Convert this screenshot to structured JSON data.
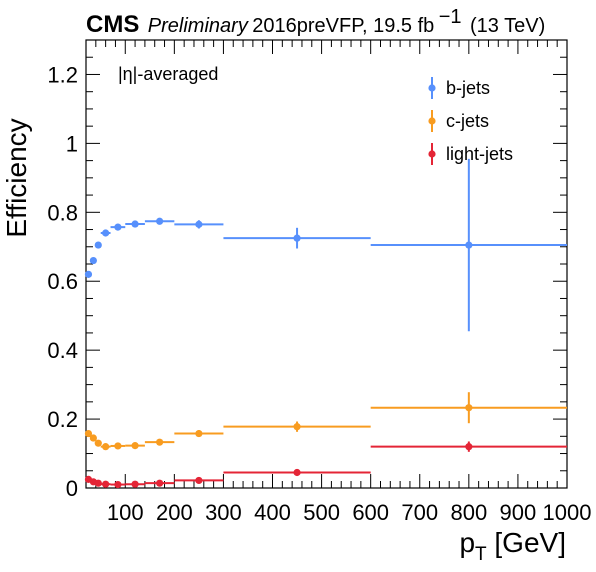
{
  "header": {
    "experiment": "CMS",
    "status": "Preliminary",
    "lumi_text": "2016preVFP, 19.5 fb",
    "lumi_exponent": "−1",
    "energy": "(13 TeV)"
  },
  "annotation": "|η|-averaged",
  "chart_data": {
    "type": "scatter",
    "xlabel": "p",
    "xlabel_subscript": "T",
    "xlabel_unit": " [GeV]",
    "ylabel": "Efficiency",
    "xlim": [
      20,
      1000
    ],
    "ylim": [
      0,
      1.3
    ],
    "x_ticks": [
      100,
      200,
      300,
      400,
      500,
      600,
      700,
      800,
      900,
      1000
    ],
    "x_tick_labels": [
      "100",
      "200",
      "300",
      "400",
      "500",
      "600",
      "700",
      "800",
      "900",
      "1000"
    ],
    "y_ticks": [
      0,
      0.2,
      0.4,
      0.6,
      0.8,
      1,
      1.2
    ],
    "y_tick_labels": [
      "0",
      "0.2",
      "0.4",
      "0.6",
      "0.8",
      "1",
      "1.2"
    ],
    "legend_position": "top-right",
    "bins": [
      [
        20,
        30
      ],
      [
        30,
        40
      ],
      [
        40,
        50
      ],
      [
        50,
        70
      ],
      [
        70,
        100
      ],
      [
        100,
        140
      ],
      [
        140,
        200
      ],
      [
        200,
        300
      ],
      [
        300,
        600
      ],
      [
        600,
        1000
      ]
    ],
    "series": [
      {
        "name": "b-jets",
        "color": "#5790fc",
        "values": [
          0.62,
          0.66,
          0.705,
          0.74,
          0.757,
          0.766,
          0.774,
          0.765,
          0.725,
          0.705
        ],
        "err_low": [
          0.008,
          0.006,
          0.006,
          0.005,
          0.005,
          0.006,
          0.007,
          0.012,
          0.03,
          0.25
        ],
        "err_high": [
          0.008,
          0.006,
          0.006,
          0.005,
          0.005,
          0.006,
          0.007,
          0.012,
          0.03,
          0.25
        ]
      },
      {
        "name": "c-jets",
        "color": "#f89c20",
        "values": [
          0.158,
          0.145,
          0.13,
          0.12,
          0.122,
          0.123,
          0.133,
          0.158,
          0.178,
          0.233
        ],
        "err_low": [
          0.006,
          0.005,
          0.005,
          0.004,
          0.004,
          0.005,
          0.006,
          0.01,
          0.015,
          0.045
        ],
        "err_high": [
          0.006,
          0.005,
          0.005,
          0.004,
          0.004,
          0.005,
          0.006,
          0.01,
          0.015,
          0.045
        ]
      },
      {
        "name": "light-jets",
        "color": "#e42536",
        "values": [
          0.025,
          0.018,
          0.014,
          0.011,
          0.01,
          0.011,
          0.014,
          0.022,
          0.045,
          0.12
        ],
        "err_low": [
          0.003,
          0.002,
          0.002,
          0.002,
          0.002,
          0.002,
          0.003,
          0.004,
          0.006,
          0.015
        ],
        "err_high": [
          0.003,
          0.002,
          0.002,
          0.002,
          0.002,
          0.002,
          0.003,
          0.004,
          0.006,
          0.015
        ]
      }
    ]
  }
}
